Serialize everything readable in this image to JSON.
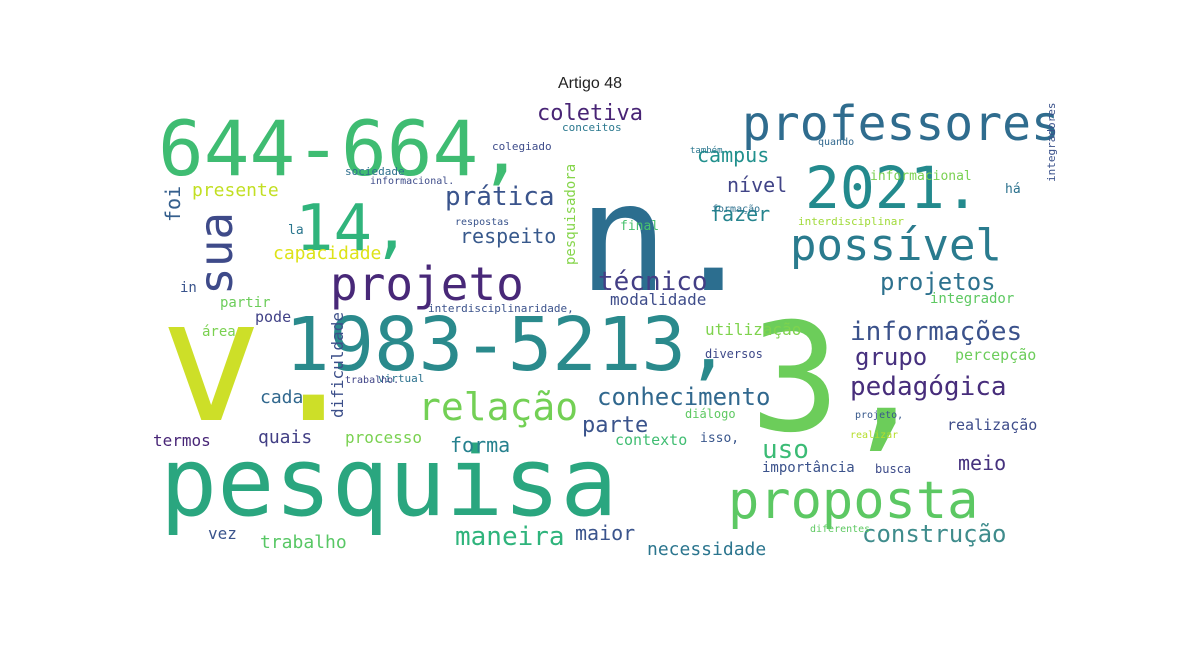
{
  "title": "Artigo 48",
  "words": [
    {
      "text": "n.",
      "color": "#2c6e8f"
    },
    {
      "text": "v.",
      "color": "#cddf28"
    },
    {
      "text": "3,",
      "color": "#6ccd5a"
    },
    {
      "text": "pesquisa",
      "color": "#2aa67f"
    },
    {
      "text": "644-664,",
      "color": "#3fbc72"
    },
    {
      "text": "1983-5213,",
      "color": "#2a8a8c"
    },
    {
      "text": "2021.",
      "color": "#238a8d"
    },
    {
      "text": "14,",
      "color": "#30b47c"
    },
    {
      "text": "proposta",
      "color": "#5cc863"
    },
    {
      "text": "professores",
      "color": "#2f6c8e"
    },
    {
      "text": "projeto",
      "color": "#482878"
    },
    {
      "text": "possível",
      "color": "#2a7b8e"
    },
    {
      "text": "relação",
      "color": "#73d055"
    },
    {
      "text": "sua",
      "color": "#3e4a89"
    },
    {
      "text": "informações",
      "color": "#3b528b"
    },
    {
      "text": "pedagógica",
      "color": "#472d7b"
    },
    {
      "text": "conhecimento",
      "color": "#31688e"
    },
    {
      "text": "técnico",
      "color": "#433e85"
    },
    {
      "text": "prática",
      "color": "#3a548c"
    },
    {
      "text": "projetos",
      "color": "#2d718e"
    },
    {
      "text": "grupo",
      "color": "#46307e"
    },
    {
      "text": "coletiva",
      "color": "#482475"
    },
    {
      "text": "maneira",
      "color": "#2fb47c"
    },
    {
      "text": "construção",
      "color": "#3f8c8c"
    },
    {
      "text": "uso",
      "color": "#3bbb75"
    },
    {
      "text": "parte",
      "color": "#3a538b"
    },
    {
      "text": "respeito",
      "color": "#38598c"
    },
    {
      "text": "campus",
      "color": "#21908d"
    },
    {
      "text": "nível",
      "color": "#414487"
    },
    {
      "text": "fazer",
      "color": "#25848e"
    },
    {
      "text": "presente",
      "color": "#c2df23"
    },
    {
      "text": "capacidade",
      "color": "#dde318"
    },
    {
      "text": "foi",
      "color": "#355f8d"
    },
    {
      "text": "modalidade",
      "color": "#3e4c8a"
    },
    {
      "text": "forma",
      "color": "#26818e"
    },
    {
      "text": "meio",
      "color": "#46327e"
    },
    {
      "text": "maior",
      "color": "#3a548c"
    },
    {
      "text": "necessidade",
      "color": "#2b758e"
    },
    {
      "text": "trabalho",
      "color": "#58c765"
    },
    {
      "text": "cada",
      "color": "#31688e"
    },
    {
      "text": "quais",
      "color": "#423f85"
    },
    {
      "text": "processo",
      "color": "#7ad151"
    },
    {
      "text": "termos",
      "color": "#482677"
    },
    {
      "text": "vez",
      "color": "#3a548c"
    },
    {
      "text": "pode",
      "color": "#414287"
    },
    {
      "text": "dificuldade",
      "color": "#3c4f8a"
    },
    {
      "text": "integrador",
      "color": "#5ec962"
    },
    {
      "text": "utilização",
      "color": "#7fd34e"
    },
    {
      "text": "percepção",
      "color": "#6ccd5a"
    },
    {
      "text": "realização",
      "color": "#3e4c8a"
    },
    {
      "text": "contexto",
      "color": "#40bd72"
    },
    {
      "text": "importância",
      "color": "#3b528b"
    },
    {
      "text": "pesquisadora",
      "color": "#85d54a"
    },
    {
      "text": "informacional",
      "color": "#7ad151"
    },
    {
      "text": "interdisciplinaridade,",
      "color": "#3b528b"
    },
    {
      "text": "diversos",
      "color": "#3e4989"
    },
    {
      "text": "virtual",
      "color": "#2c728e"
    },
    {
      "text": "sociedade",
      "color": "#2e6f8e"
    },
    {
      "text": "colegiado",
      "color": "#3e4c8a"
    },
    {
      "text": "conceitos",
      "color": "#2a788e"
    },
    {
      "text": "isso,",
      "color": "#39568c"
    },
    {
      "text": "diálogo",
      "color": "#5ec962"
    },
    {
      "text": "busca",
      "color": "#3e4c8a"
    },
    {
      "text": "la",
      "color": "#2a768e"
    },
    {
      "text": "in",
      "color": "#3a548c"
    },
    {
      "text": "partir",
      "color": "#6ccd5a"
    },
    {
      "text": "área",
      "color": "#7ad151"
    },
    {
      "text": "há",
      "color": "#2c728e"
    },
    {
      "text": "final",
      "color": "#48c16e"
    },
    {
      "text": "integradores",
      "color": "#3b528b"
    },
    {
      "text": "interdisciplinar",
      "color": "#a0da39"
    },
    {
      "text": "formação",
      "color": "#2d708e"
    },
    {
      "text": "quando",
      "color": "#31688e"
    },
    {
      "text": "também",
      "color": "#2a768e"
    },
    {
      "text": "respostas",
      "color": "#3a548c"
    },
    {
      "text": "trabalho.",
      "color": "#414487"
    },
    {
      "text": "projeto,",
      "color": "#38598c"
    },
    {
      "text": "realizar",
      "color": "#b5de2b"
    },
    {
      "text": "diferentes",
      "color": "#5ec962"
    },
    {
      "text": "informacional.",
      "color": "#3e4c8a"
    }
  ]
}
